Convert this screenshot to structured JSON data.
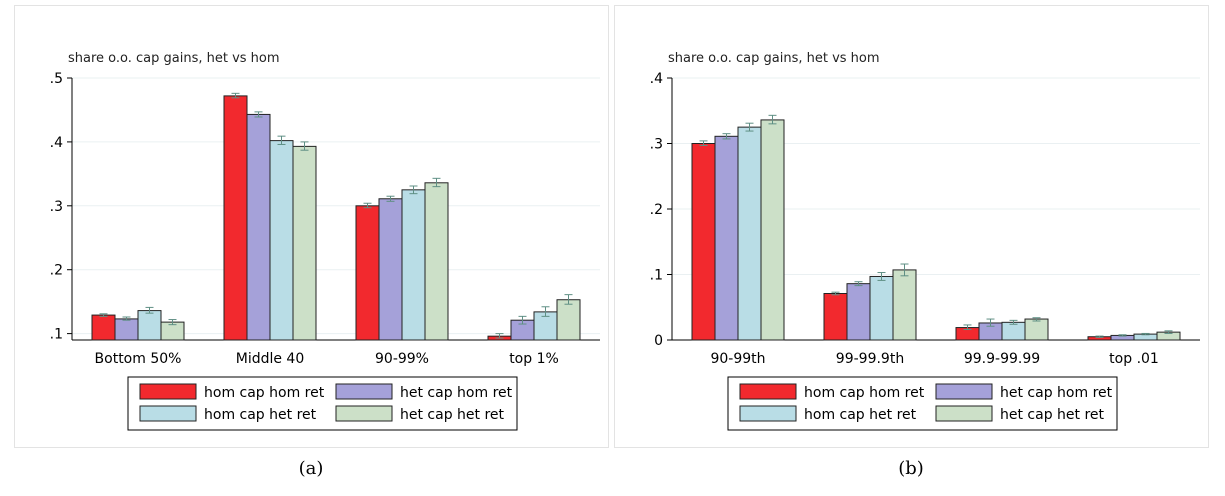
{
  "colors": {
    "hom_cap_hom_ret": "#f2292e",
    "het_cap_hom_ret": "#a5a1d9",
    "hom_cap_het_ret": "#b9dde6",
    "het_cap_het_ret": "#cce0c8",
    "error_bar": "#5f8f84",
    "gridline": "#eaf0f2"
  },
  "captions": {
    "a": "(a)",
    "b": "(b)"
  },
  "chart_data": [
    {
      "type": "bar",
      "title": "share o.o. cap gains, het vs hom",
      "categories": [
        "Bottom 50%",
        "Middle 40",
        "90-99%",
        "top 1%"
      ],
      "ylim": [
        0.09,
        0.5
      ],
      "yticks": [
        0.1,
        0.2,
        0.3,
        0.4,
        0.5
      ],
      "ytick_labels": [
        ".1",
        ".2",
        ".3",
        ".4",
        ".5"
      ],
      "grid": true,
      "legend_position": "bottom",
      "series": [
        {
          "name": "hom cap hom ret",
          "values": [
            0.129,
            0.472,
            0.3,
            0.096
          ],
          "ci": [
            [
              0.127,
              0.131
            ],
            [
              0.469,
              0.476
            ],
            [
              0.297,
              0.304
            ],
            [
              0.093,
              0.1
            ]
          ]
        },
        {
          "name": "het cap hom ret",
          "values": [
            0.123,
            0.443,
            0.311,
            0.121
          ],
          "ci": [
            [
              0.121,
              0.126
            ],
            [
              0.439,
              0.447
            ],
            [
              0.307,
              0.315
            ],
            [
              0.115,
              0.127
            ]
          ]
        },
        {
          "name": "hom cap het ret",
          "values": [
            0.136,
            0.402,
            0.325,
            0.134
          ],
          "ci": [
            [
              0.132,
              0.141
            ],
            [
              0.396,
              0.409
            ],
            [
              0.319,
              0.331
            ],
            [
              0.127,
              0.142
            ]
          ]
        },
        {
          "name": "het cap het ret",
          "values": [
            0.118,
            0.393,
            0.336,
            0.153
          ],
          "ci": [
            [
              0.114,
              0.122
            ],
            [
              0.387,
              0.4
            ],
            [
              0.33,
              0.343
            ],
            [
              0.146,
              0.161
            ]
          ]
        }
      ]
    },
    {
      "type": "bar",
      "title": "share o.o. cap gains, het vs hom",
      "categories": [
        "90-99th",
        "99-99.9th",
        "99.9-99.99",
        "top .01"
      ],
      "ylim": [
        0,
        0.4
      ],
      "yticks": [
        0,
        0.1,
        0.2,
        0.3,
        0.4
      ],
      "ytick_labels": [
        "0",
        ".1",
        ".2",
        ".3",
        ".4"
      ],
      "grid": true,
      "legend_position": "bottom",
      "series": [
        {
          "name": "hom cap hom ret",
          "values": [
            0.3,
            0.071,
            0.019,
            0.005
          ],
          "ci": [
            [
              0.297,
              0.304
            ],
            [
              0.069,
              0.073
            ],
            [
              0.016,
              0.023
            ],
            [
              0.004,
              0.006
            ]
          ]
        },
        {
          "name": "het cap hom ret",
          "values": [
            0.311,
            0.086,
            0.026,
            0.007
          ],
          "ci": [
            [
              0.307,
              0.315
            ],
            [
              0.083,
              0.089
            ],
            [
              0.021,
              0.032
            ],
            [
              0.006,
              0.008
            ]
          ]
        },
        {
          "name": "hom cap het ret",
          "values": [
            0.325,
            0.097,
            0.027,
            0.009
          ],
          "ci": [
            [
              0.319,
              0.331
            ],
            [
              0.091,
              0.103
            ],
            [
              0.024,
              0.03
            ],
            [
              0.008,
              0.01
            ]
          ]
        },
        {
          "name": "het cap het ret",
          "values": [
            0.336,
            0.107,
            0.032,
            0.012
          ],
          "ci": [
            [
              0.33,
              0.343
            ],
            [
              0.098,
              0.116
            ],
            [
              0.029,
              0.034
            ],
            [
              0.01,
              0.014
            ]
          ]
        }
      ]
    }
  ]
}
